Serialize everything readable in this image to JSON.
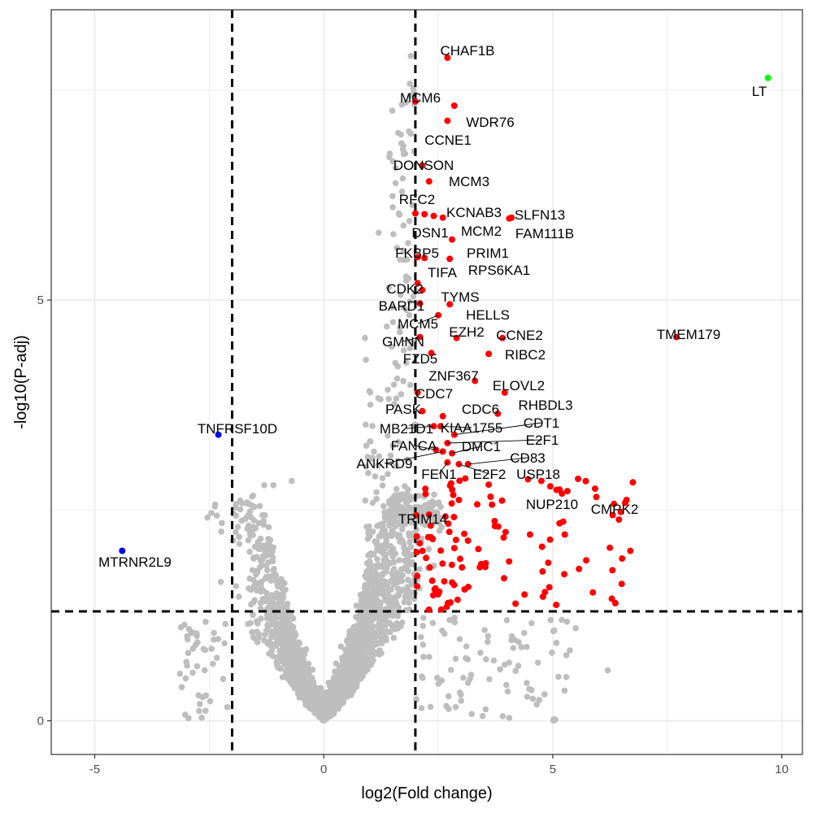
{
  "chart_data": {
    "type": "scatter",
    "title": "",
    "xlabel": "log2(Fold change)",
    "ylabel": "-log10(P-adj)",
    "xlim": [
      -5.95,
      10.45
    ],
    "ylim": [
      -0.4,
      8.45
    ],
    "xticks": [
      -5,
      0,
      5,
      10
    ],
    "yticks": [
      0,
      5
    ],
    "grid": true,
    "legend": "none",
    "thresholds": {
      "log2fc": [
        -2,
        2
      ],
      "neg_log10_padj": 1.3
    },
    "colors": {
      "up": "#ff0000",
      "down": "#0000ff",
      "highlight": "#00ff00",
      "ns": "#bebebe",
      "grid": "#ebebeb"
    },
    "labeled_points": [
      {
        "gene": "CHAF1B",
        "x": 2.7,
        "y": 7.88,
        "group": "up"
      },
      {
        "gene": "LT",
        "x": 9.7,
        "y": 7.64,
        "group": "highlight"
      },
      {
        "gene": "MCM6",
        "x": 2.0,
        "y": 7.36,
        "group": "up"
      },
      {
        "gene": "WDR76",
        "x": 2.85,
        "y": 7.31,
        "group": "up"
      },
      {
        "gene": "CCNE1",
        "x": 2.7,
        "y": 7.13,
        "group": "up"
      },
      {
        "gene": "DONSON",
        "x": 2.15,
        "y": 6.6,
        "group": "up"
      },
      {
        "gene": "MCM3",
        "x": 2.3,
        "y": 6.41,
        "group": "up"
      },
      {
        "gene": "RFC2",
        "x": 2.0,
        "y": 6.03,
        "group": "up"
      },
      {
        "gene": "KCNAB3",
        "x": 2.2,
        "y": 6.02,
        "group": "up"
      },
      {
        "gene": "SLFN13",
        "x": 4.1,
        "y": 5.98,
        "group": "up"
      },
      {
        "gene": "DSN1",
        "x": 2.4,
        "y": 6.0,
        "group": "up"
      },
      {
        "gene": "MCM2",
        "x": 2.6,
        "y": 5.98,
        "group": "up"
      },
      {
        "gene": "FAM111B",
        "x": 4.05,
        "y": 5.97,
        "group": "up"
      },
      {
        "gene": "PRIM1",
        "x": 2.8,
        "y": 5.72,
        "group": "up"
      },
      {
        "gene": "FKBP5",
        "x": 2.05,
        "y": 5.51,
        "group": "up"
      },
      {
        "gene": "RPS6KA1",
        "x": 2.75,
        "y": 5.49,
        "group": "up"
      },
      {
        "gene": "TIFA",
        "x": 2.2,
        "y": 5.5,
        "group": "up"
      },
      {
        "gene": "CDK2",
        "x": 2.05,
        "y": 5.2,
        "group": "up"
      },
      {
        "gene": "TYMS",
        "x": 2.15,
        "y": 5.12,
        "group": "up"
      },
      {
        "gene": "BARD1",
        "x": 2.1,
        "y": 4.96,
        "group": "up"
      },
      {
        "gene": "HELLS",
        "x": 2.75,
        "y": 4.95,
        "group": "up"
      },
      {
        "gene": "MCM5",
        "x": 2.5,
        "y": 4.82,
        "group": "up"
      },
      {
        "gene": "EZH2",
        "x": 2.9,
        "y": 4.55,
        "group": "up"
      },
      {
        "gene": "CCNE2",
        "x": 3.9,
        "y": 4.55,
        "group": "up"
      },
      {
        "gene": "TMEM179",
        "x": 7.7,
        "y": 4.56,
        "group": "up"
      },
      {
        "gene": "GMNN",
        "x": 2.1,
        "y": 4.56,
        "group": "up"
      },
      {
        "gene": "RIBC2",
        "x": 3.6,
        "y": 4.36,
        "group": "up"
      },
      {
        "gene": "FZD5",
        "x": 2.35,
        "y": 4.37,
        "group": "up"
      },
      {
        "gene": "ZNF367",
        "x": 3.3,
        "y": 4.04,
        "group": "up"
      },
      {
        "gene": "ELOVL2",
        "x": 3.95,
        "y": 3.9,
        "group": "up"
      },
      {
        "gene": "CDC7",
        "x": 2.05,
        "y": 3.9,
        "group": "up"
      },
      {
        "gene": "RHBDL3",
        "x": 3.8,
        "y": 3.65,
        "group": "up"
      },
      {
        "gene": "PASK",
        "x": 2.15,
        "y": 3.68,
        "group": "up"
      },
      {
        "gene": "CDC6",
        "x": 2.6,
        "y": 3.62,
        "group": "up"
      },
      {
        "gene": "CDT1",
        "x": 2.85,
        "y": 3.4,
        "group": "up"
      },
      {
        "gene": "MB21D1",
        "x": 2.4,
        "y": 3.5,
        "group": "up"
      },
      {
        "gene": "KIAA1755",
        "x": 2.55,
        "y": 3.5,
        "group": "up"
      },
      {
        "gene": "E2F1",
        "x": 2.7,
        "y": 3.3,
        "group": "up"
      },
      {
        "gene": "FANCA",
        "x": 2.45,
        "y": 3.22,
        "group": "up"
      },
      {
        "gene": "DMC1",
        "x": 2.8,
        "y": 3.18,
        "group": "up"
      },
      {
        "gene": "CD83",
        "x": 3.15,
        "y": 3.05,
        "group": "up"
      },
      {
        "gene": "ANKRD9",
        "x": 2.6,
        "y": 3.2,
        "group": "up"
      },
      {
        "gene": "USP18",
        "x": 4.75,
        "y": 2.85,
        "group": "up"
      },
      {
        "gene": "FEN1",
        "x": 2.7,
        "y": 3.07,
        "group": "up"
      },
      {
        "gene": "E2F2",
        "x": 2.95,
        "y": 3.05,
        "group": "up"
      },
      {
        "gene": "NUP210",
        "x": 5.2,
        "y": 2.7,
        "group": "up"
      },
      {
        "gene": "CMPK2",
        "x": 5.95,
        "y": 2.66,
        "group": "up"
      },
      {
        "gene": "TRIM14",
        "x": 2.3,
        "y": 2.45,
        "group": "up"
      },
      {
        "gene": "TNFRSF10D",
        "x": -2.3,
        "y": 3.4,
        "group": "down"
      },
      {
        "gene": "MTRNR2L9",
        "x": -4.4,
        "y": 2.02,
        "group": "down"
      }
    ]
  }
}
